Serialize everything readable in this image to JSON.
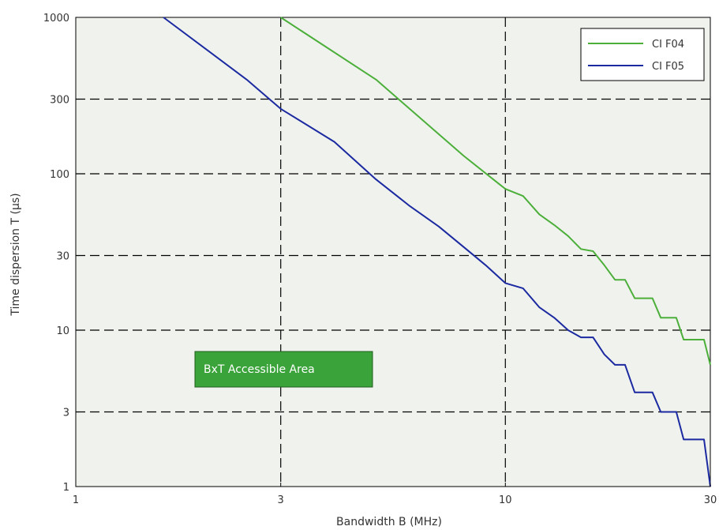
{
  "chart_data": {
    "type": "line",
    "title": "",
    "xlabel": "Bandwidth B (MHz)",
    "ylabel": "Time dispersion T (µs)",
    "x_scale": "log",
    "y_scale": "log",
    "xlim": [
      1,
      30
    ],
    "ylim": [
      1,
      1000
    ],
    "x_ticks": [
      1,
      3,
      10,
      30
    ],
    "x_tick_labels": [
      "1",
      "3",
      "10",
      "30"
    ],
    "y_ticks": [
      1,
      3,
      10,
      30,
      100,
      300,
      1000
    ],
    "y_tick_labels": [
      "1",
      "3",
      "10",
      "30",
      "100",
      "300",
      "1000"
    ],
    "grid": "dashed",
    "legend_position": "top-right",
    "annotation": "BxT Accessible Area",
    "series": [
      {
        "name": "CI F04",
        "color": "#4caf3a",
        "points": [
          [
            3,
            1000
          ],
          [
            5,
            400
          ],
          [
            8,
            130
          ],
          [
            10,
            80
          ],
          [
            11,
            72
          ],
          [
            12,
            55
          ],
          [
            13,
            47
          ],
          [
            14,
            40
          ],
          [
            15,
            33
          ],
          [
            16,
            32
          ],
          [
            17,
            26
          ],
          [
            18,
            21
          ],
          [
            19,
            21
          ],
          [
            20,
            16
          ],
          [
            21,
            16
          ],
          [
            22,
            16
          ],
          [
            23,
            12
          ],
          [
            24,
            12
          ],
          [
            25,
            12
          ],
          [
            26,
            8.7
          ],
          [
            27,
            8.7
          ],
          [
            28,
            8.7
          ],
          [
            29,
            8.7
          ],
          [
            30,
            6
          ]
        ]
      },
      {
        "name": "CI F05",
        "color": "#1b2aa0",
        "points": [
          [
            1.6,
            1000
          ],
          [
            2.5,
            400
          ],
          [
            3,
            260
          ],
          [
            4,
            160
          ],
          [
            5,
            92
          ],
          [
            6,
            62
          ],
          [
            7,
            46
          ],
          [
            8,
            34
          ],
          [
            9,
            26
          ],
          [
            10,
            20
          ],
          [
            11,
            18.5
          ],
          [
            12,
            14
          ],
          [
            13,
            12
          ],
          [
            14,
            10
          ],
          [
            15,
            9
          ],
          [
            16,
            9
          ],
          [
            17,
            7
          ],
          [
            18,
            6
          ],
          [
            19,
            6
          ],
          [
            20,
            4
          ],
          [
            21,
            4
          ],
          [
            22,
            4
          ],
          [
            23,
            3
          ],
          [
            24,
            3
          ],
          [
            25,
            3
          ],
          [
            26,
            2
          ],
          [
            27,
            2
          ],
          [
            28,
            2
          ],
          [
            29,
            2
          ],
          [
            30,
            1
          ]
        ]
      }
    ]
  },
  "colors": {
    "plot_background": "#f0f2ee",
    "annotation_box": "#3aa33a",
    "grid": "#000000"
  }
}
